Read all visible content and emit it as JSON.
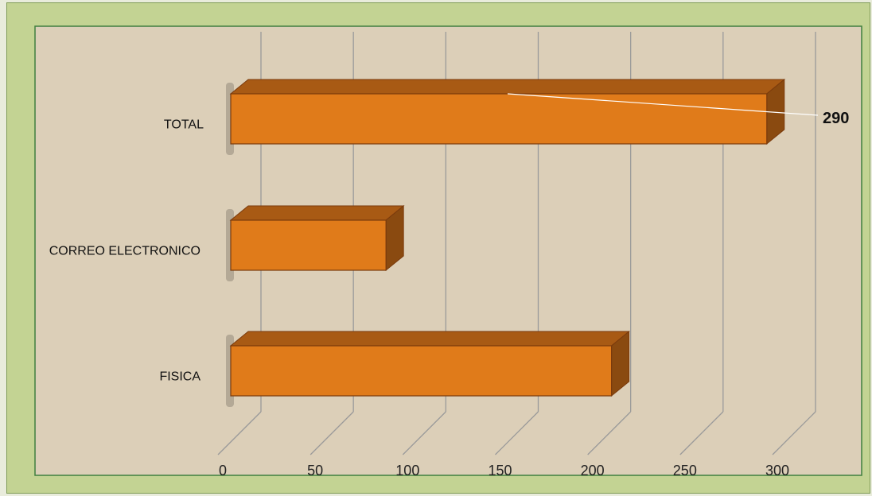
{
  "chart_data": {
    "type": "bar",
    "orientation": "horizontal",
    "three_d": true,
    "title": "",
    "xlabel": "",
    "ylabel": "",
    "categories": [
      "TOTAL",
      "CORREO ELECTRONICO",
      "FISICA"
    ],
    "values": [
      290,
      84,
      206
    ],
    "xlim": [
      0,
      300
    ],
    "xticks": [
      0,
      50,
      100,
      150,
      200,
      250,
      300
    ],
    "grid": true,
    "legend": "none",
    "data_labels": [
      {
        "category": "TOTAL",
        "text": "290"
      }
    ],
    "colors": {
      "bar_front": "#e07b1a",
      "bar_top": "#a85a14",
      "bar_side": "#8a4a10",
      "bar_outline": "#7a3a0c",
      "plot_background": "#dccfb8",
      "gridline": "#9a9a9a",
      "frame_background": "#c3d393"
    }
  }
}
